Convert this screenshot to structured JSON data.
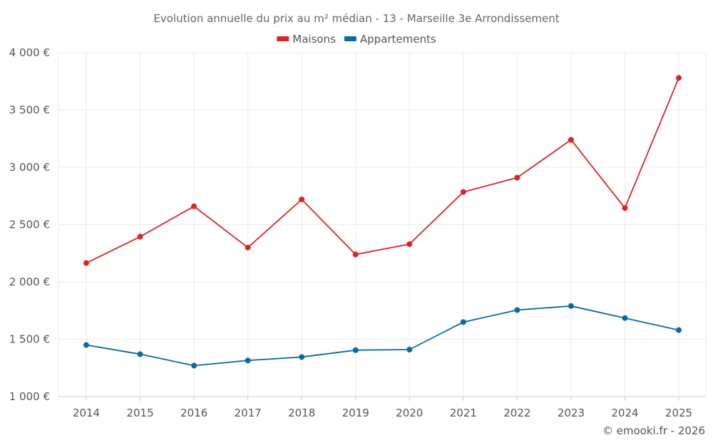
{
  "chart_data": {
    "type": "line",
    "title": "Evolution annuelle du prix au m² médian - 13 - Marseille 3e Arrondissement",
    "categories": [
      "2014",
      "2015",
      "2016",
      "2017",
      "2018",
      "2019",
      "2020",
      "2021",
      "2022",
      "2023",
      "2024",
      "2025"
    ],
    "series": [
      {
        "name": "Maisons",
        "color": "#d62728",
        "values": [
          2165,
          2395,
          2660,
          2300,
          2720,
          2240,
          2330,
          2785,
          2910,
          3240,
          2645,
          3780
        ]
      },
      {
        "name": "Appartements",
        "color": "#0b6aa2",
        "values": [
          1450,
          1370,
          1270,
          1315,
          1345,
          1405,
          1410,
          1650,
          1755,
          1790,
          1685,
          1580
        ]
      }
    ],
    "y_ticks": [
      1000,
      1500,
      2000,
      2500,
      3000,
      3500,
      4000
    ],
    "y_tick_labels": [
      "1 000 €",
      "1 500 €",
      "2 000 €",
      "2 500 €",
      "3 000 €",
      "3 500 €",
      "4 000 €"
    ],
    "ylim": [
      1000,
      4000
    ],
    "xlabel": "",
    "ylabel": "",
    "grid": true,
    "legend_position": "top-center"
  },
  "credit": "© emooki.fr - 2026"
}
